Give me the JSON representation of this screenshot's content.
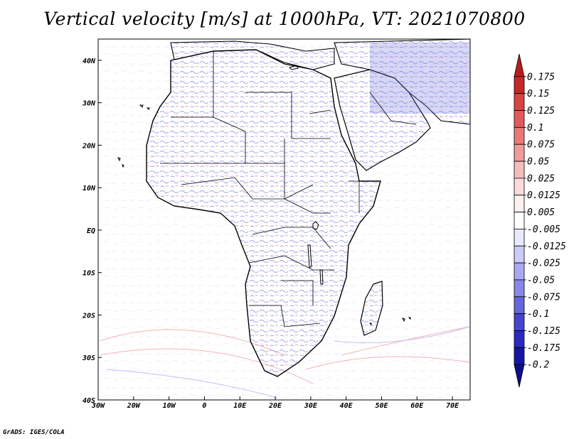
{
  "title": "Vertical velocity [m/s] at 1000hPa, VT: 2021070800",
  "footer": "GrADS: IGES/COLA",
  "map": {
    "lon_range": [
      -30,
      75
    ],
    "lat_range": [
      -40,
      45
    ],
    "x_ticks": [
      "30W",
      "20W",
      "10W",
      "0",
      "10E",
      "20E",
      "30E",
      "40E",
      "50E",
      "60E",
      "70E"
    ],
    "y_ticks": [
      "40N",
      "30N",
      "20N",
      "10N",
      "EQ",
      "10S",
      "20S",
      "30S",
      "40S"
    ]
  },
  "colorbar": {
    "levels": [
      "0.175",
      "0.15",
      "0.125",
      "0.1",
      "0.075",
      "0.05",
      "0.025",
      "0.0125",
      "0.005",
      "-0.005",
      "-0.0125",
      "-0.025",
      "-0.05",
      "-0.075",
      "-0.1",
      "-0.125",
      "-0.175",
      "-0.2"
    ],
    "colors": [
      "#b71c1c",
      "#c62828",
      "#d84343",
      "#e35a5a",
      "#ea7878",
      "#f19a9a",
      "#f6bcbc",
      "#fadada",
      "#fdf0f0",
      "#ffffff",
      "#eaeaff",
      "#ccccfb",
      "#a9a9f3",
      "#8888ea",
      "#6666de",
      "#4545cf",
      "#2a2abd",
      "#1616a6",
      "#0d0d8a"
    ]
  }
}
